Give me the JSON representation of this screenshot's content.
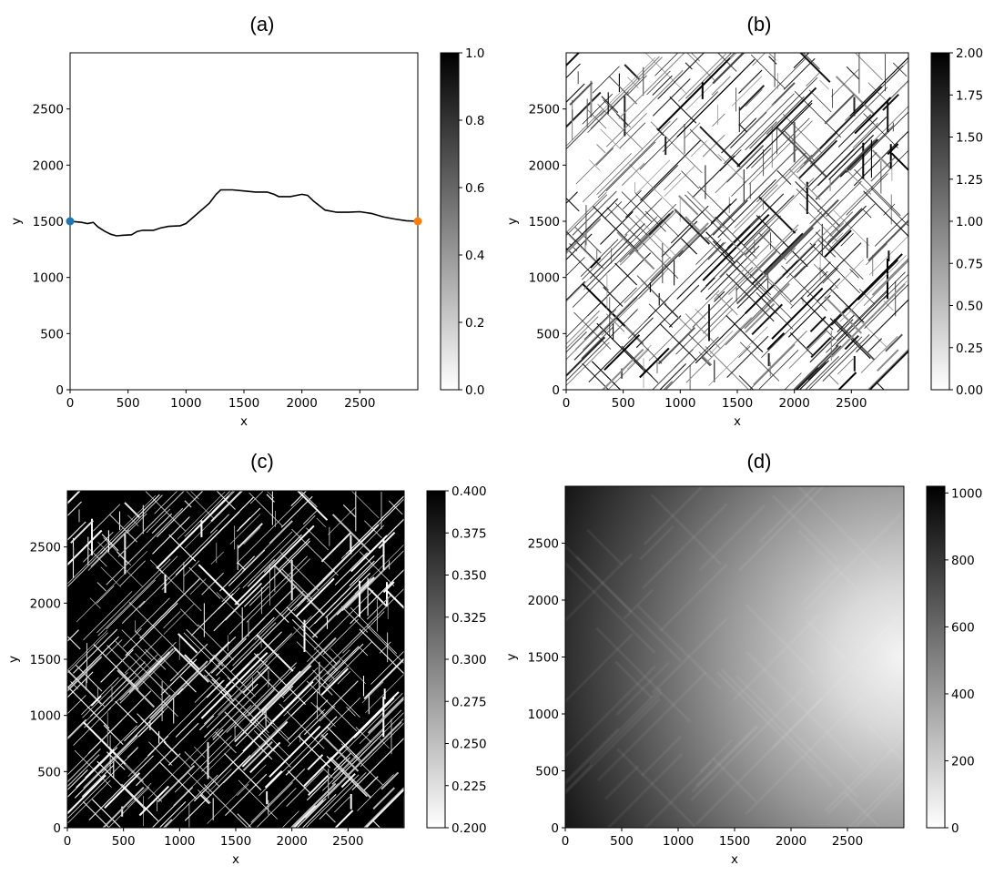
{
  "chart_data": [
    {
      "type": "heatmap",
      "title": "(a)",
      "xlabel": "x",
      "ylabel": "y",
      "xlim": [
        0,
        3000
      ],
      "ylim": [
        0,
        3000
      ],
      "xticks": [
        "0",
        "500",
        "1000",
        "1500",
        "2000",
        "2500"
      ],
      "yticks": [
        "0",
        "500",
        "1000",
        "1500",
        "2000",
        "2500"
      ],
      "colormap": "gray_r",
      "colorbar": {
        "min": 0.0,
        "max": 1.0,
        "ticks": [
          "0.0",
          "0.2",
          "0.4",
          "0.6",
          "0.8",
          "1.0"
        ]
      },
      "path": [
        [
          0,
          1500
        ],
        [
          50,
          1495
        ],
        [
          100,
          1490
        ],
        [
          150,
          1480
        ],
        [
          200,
          1490
        ],
        [
          240,
          1450
        ],
        [
          300,
          1410
        ],
        [
          350,
          1385
        ],
        [
          400,
          1370
        ],
        [
          450,
          1375
        ],
        [
          530,
          1380
        ],
        [
          580,
          1410
        ],
        [
          630,
          1420
        ],
        [
          720,
          1420
        ],
        [
          780,
          1440
        ],
        [
          850,
          1455
        ],
        [
          950,
          1460
        ],
        [
          1000,
          1480
        ],
        [
          1100,
          1570
        ],
        [
          1200,
          1660
        ],
        [
          1260,
          1740
        ],
        [
          1300,
          1780
        ],
        [
          1400,
          1780
        ],
        [
          1500,
          1770
        ],
        [
          1600,
          1760
        ],
        [
          1700,
          1760
        ],
        [
          1760,
          1740
        ],
        [
          1800,
          1720
        ],
        [
          1900,
          1720
        ],
        [
          2000,
          1740
        ],
        [
          2050,
          1730
        ],
        [
          2100,
          1680
        ],
        [
          2200,
          1600
        ],
        [
          2300,
          1580
        ],
        [
          2400,
          1580
        ],
        [
          2500,
          1585
        ],
        [
          2600,
          1570
        ],
        [
          2700,
          1540
        ],
        [
          2800,
          1520
        ],
        [
          2900,
          1505
        ],
        [
          3000,
          1500
        ]
      ],
      "markers": [
        {
          "x": 0,
          "y": 1500,
          "color": "#1f77b4"
        },
        {
          "x": 3000,
          "y": 1500,
          "color": "#ff7f0e"
        }
      ]
    },
    {
      "type": "heatmap",
      "title": "(b)",
      "xlabel": "x",
      "ylabel": "y",
      "xlim": [
        0,
        3000
      ],
      "ylim": [
        0,
        3000
      ],
      "xticks": [
        "0",
        "500",
        "1000",
        "1500",
        "2000",
        "2500"
      ],
      "yticks": [
        "0",
        "500",
        "1000",
        "1500",
        "2000",
        "2500"
      ],
      "colormap": "gray_r",
      "colorbar": {
        "min": 0.0,
        "max": 2.0,
        "ticks": [
          "0.00",
          "0.25",
          "0.50",
          "0.75",
          "1.00",
          "1.25",
          "1.50",
          "1.75",
          "2.00"
        ]
      },
      "pattern": "diagonal fracture network, white background"
    },
    {
      "type": "heatmap",
      "title": "(c)",
      "xlabel": "x",
      "ylabel": "y",
      "xlim": [
        0,
        3000
      ],
      "ylim": [
        0,
        3000
      ],
      "xticks": [
        "0",
        "500",
        "1000",
        "1500",
        "2000",
        "2500"
      ],
      "yticks": [
        "0",
        "500",
        "1000",
        "1500",
        "2000",
        "2500"
      ],
      "colormap": "gray_r",
      "colorbar": {
        "min": 0.2,
        "max": 0.4,
        "ticks": [
          "0.200",
          "0.225",
          "0.250",
          "0.275",
          "0.300",
          "0.325",
          "0.350",
          "0.375",
          "0.400"
        ]
      },
      "pattern": "diagonal fracture network, black background"
    },
    {
      "type": "heatmap",
      "title": "(d)",
      "xlabel": "x",
      "ylabel": "y",
      "xlim": [
        0,
        3000
      ],
      "ylim": [
        0,
        3000
      ],
      "xticks": [
        "0",
        "500",
        "1000",
        "1500",
        "2000",
        "2500"
      ],
      "yticks": [
        "0",
        "500",
        "1000",
        "1500",
        "2000",
        "2500"
      ],
      "colormap": "gray_r",
      "colorbar": {
        "min": 0,
        "max": 1020,
        "ticks": [
          "0",
          "200",
          "400",
          "600",
          "800",
          "1000"
        ]
      },
      "source_point": [
        3000,
        1500
      ],
      "pattern": "smooth field, high (dark) on left, minimum near right edge center"
    }
  ]
}
